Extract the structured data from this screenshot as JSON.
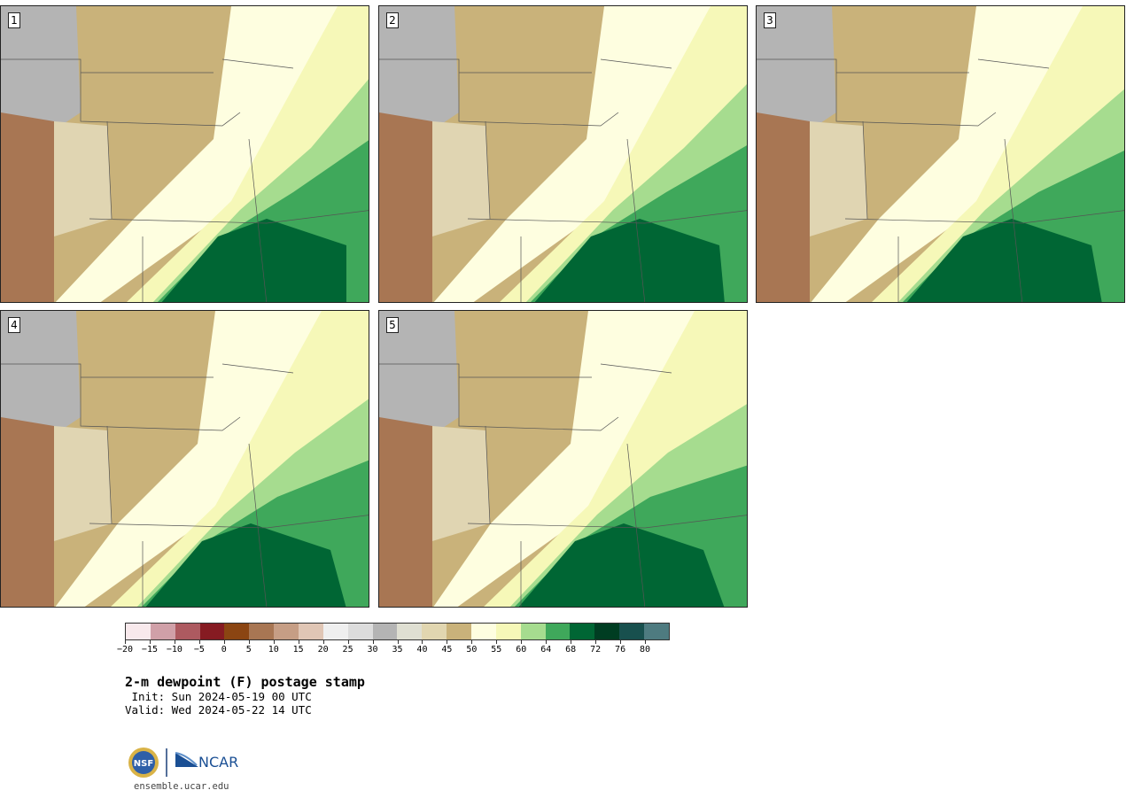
{
  "panels": [
    {
      "label": "1"
    },
    {
      "label": "2"
    },
    {
      "label": "3"
    },
    {
      "label": "4"
    },
    {
      "label": "5"
    }
  ],
  "colors": {
    "dry_tan": "#c9b27a",
    "light_tan": "#e0d5b2",
    "pale_yellow": "#fefee0",
    "light_yellow": "#f6f8b8",
    "light_green": "#a6dc8f",
    "mid_green": "#3fa85b",
    "dark_green": "#006634",
    "brown": "#a87653",
    "gray": "#b4b4b4"
  },
  "legend": {
    "colors": [
      "#f8e9ec",
      "#d0a0a8",
      "#ad5a60",
      "#861b22",
      "#8b4512",
      "#a87653",
      "#c69e85",
      "#e0c6b5",
      "#efefef",
      "#dcdcdc",
      "#b4b4b4",
      "#dfdfd2",
      "#e1d6b0",
      "#c9b27a",
      "#fefee0",
      "#f6f8b8",
      "#a6dc8f",
      "#3fa85b",
      "#006634",
      "#003d22",
      "#18504e",
      "#4e7b80"
    ],
    "ticks": [
      "−20",
      "−15",
      "−10",
      "−5",
      "0",
      "5",
      "10",
      "15",
      "20",
      "25",
      "30",
      "35",
      "40",
      "45",
      "50",
      "55",
      "60",
      "64",
      "68",
      "72",
      "76",
      "80"
    ]
  },
  "title": "2-m dewpoint (F) postage stamp",
  "init": " Init: Sun 2024-05-19 00 UTC",
  "valid": "Valid: Wed 2024-05-22 14 UTC",
  "logo": {
    "nsf_text": "NSF",
    "ncar_text": "NCAR"
  },
  "site": "ensemble.ucar.edu"
}
